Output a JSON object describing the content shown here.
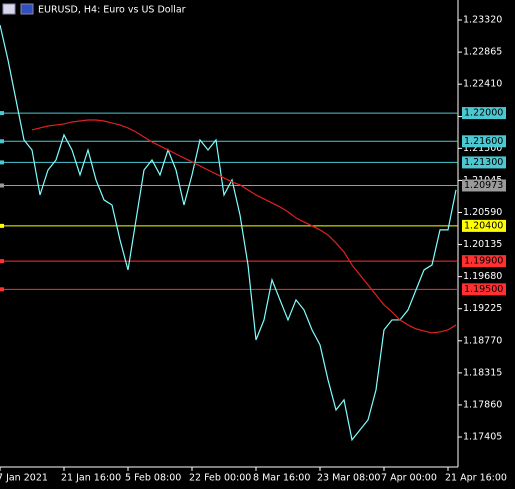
{
  "chart_data": {
    "type": "line",
    "title": "EURUSD, H4:  Euro vs US Dollar",
    "categories": [
      "7 Jan 2021",
      null,
      null,
      null,
      null,
      null,
      null,
      null,
      "21 Jan 16:00",
      null,
      null,
      null,
      null,
      null,
      null,
      null,
      "5 Feb 08:00",
      null,
      null,
      null,
      null,
      null,
      null,
      null,
      "22 Feb 00:00",
      null,
      null,
      null,
      null,
      null,
      null,
      null,
      "8 Mar 16:00",
      null,
      null,
      null,
      null,
      null,
      null,
      null,
      "23 Mar 08:00",
      null,
      null,
      null,
      null,
      null,
      null,
      null,
      "7 Apr 00:00",
      null,
      null,
      null,
      null,
      null,
      null,
      null,
      "21 Apr 16:00",
      null
    ],
    "series": [
      {
        "color": "#7fffff",
        "values": [
          1.2325,
          1.22753,
          1.22186,
          1.21619,
          1.21477,
          1.20839,
          1.21193,
          1.21335,
          1.2169,
          1.21477,
          1.21123,
          1.21477,
          1.21052,
          1.20768,
          1.20697,
          1.20201,
          1.19775,
          1.20484,
          1.21193,
          1.21335,
          1.21123,
          1.21477,
          1.21193,
          1.20697,
          1.21123,
          1.21619,
          1.21477,
          1.21619,
          1.20839,
          1.21052,
          1.20555,
          1.19846,
          1.18783,
          1.19066,
          1.19634,
          1.1935,
          1.19066,
          1.1935,
          1.19208,
          1.18925,
          1.18712,
          1.18216,
          1.1779,
          1.17932,
          1.17365,
          1.17507,
          1.17648,
          1.18074,
          1.18925,
          1.19066,
          1.19066,
          1.19208,
          1.19492,
          1.19775,
          1.19846,
          1.20343,
          1.20343,
          1.2091
        ]
      },
      {
        "color": "#e02020",
        "values": [
          null,
          null,
          null,
          null,
          1.21761,
          1.21789,
          1.21817,
          1.21832,
          1.21846,
          1.21874,
          1.21888,
          1.21902,
          1.21902,
          1.21888,
          1.2186,
          1.21832,
          1.21789,
          1.21732,
          1.21661,
          1.2159,
          1.21534,
          1.21477,
          1.2142,
          1.21364,
          1.21307,
          1.2125,
          1.21193,
          1.21137,
          1.2108,
          1.21023,
          1.20981,
          1.2091,
          1.20839,
          1.20782,
          1.20725,
          1.20669,
          1.20598,
          1.20513,
          1.20456,
          1.20399,
          1.20343,
          1.20271,
          1.20158,
          1.2003,
          1.19846,
          1.19704,
          1.19563,
          1.19421,
          1.19279,
          1.1918,
          1.19066,
          1.18995,
          1.18939,
          1.1891,
          1.18882,
          1.18896,
          1.18925,
          1.18995
        ]
      }
    ],
    "ylim": [
      1.1698,
      1.23604
    ],
    "yticks": [
      {
        "value": 1.2332,
        "label": "1.23320"
      },
      {
        "value": 1.22865,
        "label": "1.22865"
      },
      {
        "value": 1.2241,
        "label": "1.22410"
      },
      {
        "value": 1.2195,
        "label": "1.21950"
      },
      {
        "value": 1.215,
        "label": "1.21500"
      },
      {
        "value": 1.21045,
        "label": "1.21045"
      },
      {
        "value": 1.2059,
        "label": "1.20590"
      },
      {
        "value": 1.20135,
        "label": "1.20135"
      },
      {
        "value": 1.1968,
        "label": "1.19680"
      },
      {
        "value": 1.19225,
        "label": "1.19225"
      },
      {
        "value": 1.1877,
        "label": "1.18770"
      },
      {
        "value": 1.18315,
        "label": "1.18315"
      },
      {
        "value": 1.1786,
        "label": "1.17860"
      },
      {
        "value": 1.17405,
        "label": "1.17405"
      }
    ],
    "levels": [
      {
        "value": 1.22,
        "label": "1.22000",
        "color": "#4cc8d2"
      },
      {
        "value": 1.216,
        "label": "1.21600",
        "color": "#4cc8d2"
      },
      {
        "value": 1.213,
        "label": "1.21300",
        "color": "#4cc8d2"
      },
      {
        "value": 1.20973,
        "label": "1.20973",
        "color": "#9a9a9a"
      },
      {
        "value": 1.204,
        "label": "1.20400",
        "color": "#ffff00"
      },
      {
        "value": 1.199,
        "label": "1.19900",
        "color": "#ff3030"
      },
      {
        "value": 1.195,
        "label": "1.19500",
        "color": "#ff3030"
      }
    ]
  }
}
